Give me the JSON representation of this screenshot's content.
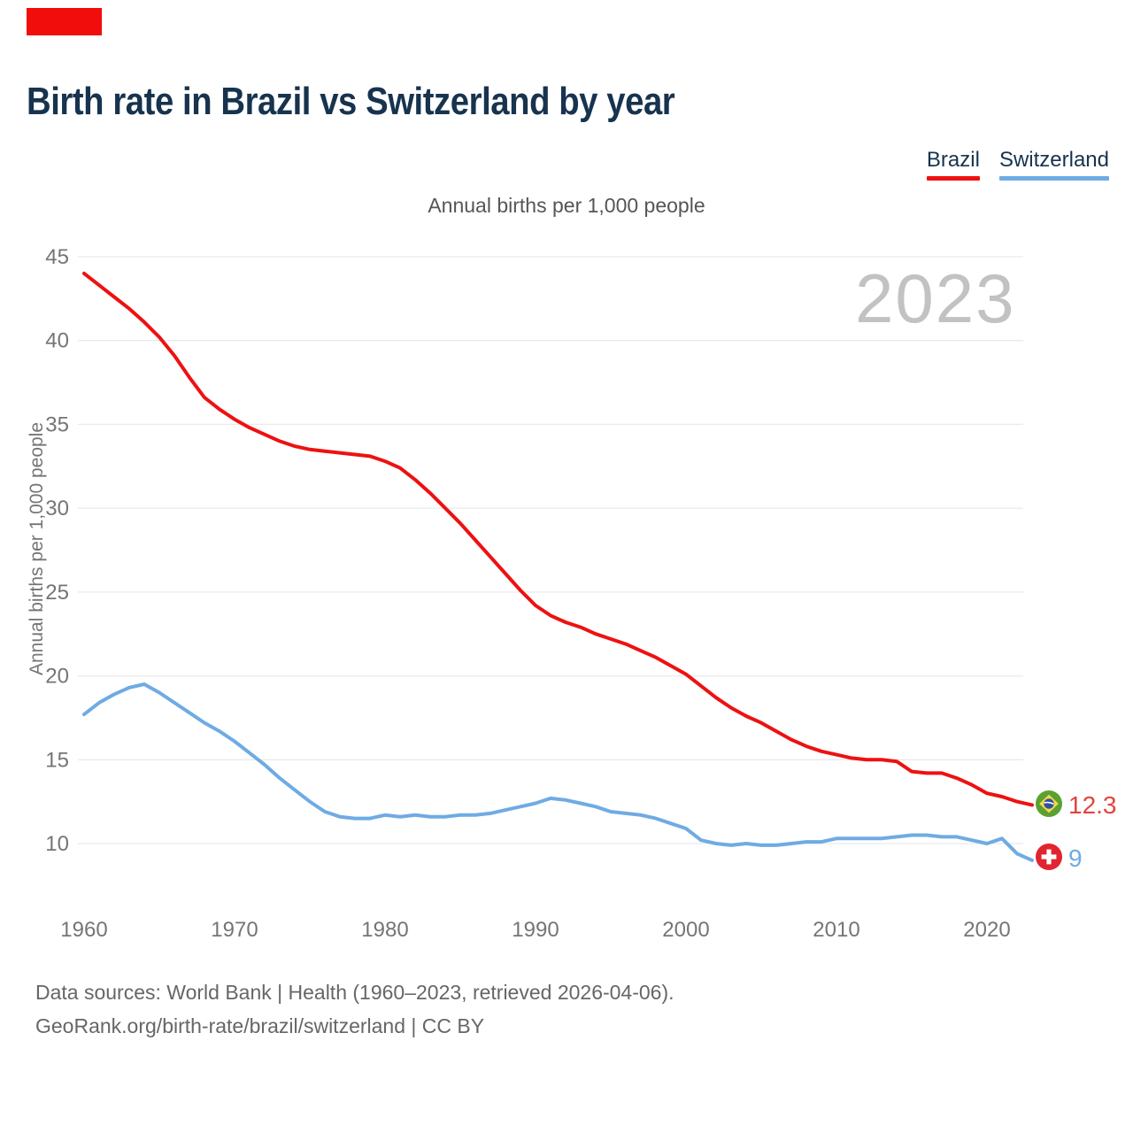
{
  "page": {
    "title": "Birth rate in Brazil vs Switzerland by year",
    "subtitle": "Annual births per 1,000 people",
    "watermark": "2023",
    "footer_line1": "Data sources: World Bank | Health (1960–2023, retrieved 2026-04-06).",
    "footer_line2": "GeoRank.org/birth-rate/brazil/switzerland | CC BY"
  },
  "legend": [
    {
      "label": "Brazil",
      "color": "#ee1111"
    },
    {
      "label": "Switzerland",
      "color": "#6fabe3"
    }
  ],
  "end_labels": [
    {
      "series": "Brazil",
      "value": "12.3",
      "color": "#e0443e",
      "flag": "brazil-flag-icon"
    },
    {
      "series": "Switzerland",
      "value": "9",
      "color": "#6fabe3",
      "flag": "switzerland-flag-icon"
    }
  ],
  "chart_data": {
    "type": "line",
    "title": "Birth rate in Brazil vs Switzerland by year",
    "subtitle": "Annual births per 1,000 people",
    "xlabel": "",
    "ylabel": "Annual births per 1,000 people",
    "xlim": [
      1960,
      2023
    ],
    "ylim": [
      8.5,
      45
    ],
    "grid": "horizontal",
    "legend_position": "top-right",
    "x_ticks": [
      1960,
      1970,
      1980,
      1990,
      2000,
      2010,
      2020
    ],
    "y_ticks": [
      45,
      40,
      35,
      30,
      25,
      20,
      15,
      10
    ],
    "x": [
      1960,
      1961,
      1962,
      1963,
      1964,
      1965,
      1966,
      1967,
      1968,
      1969,
      1970,
      1971,
      1972,
      1973,
      1974,
      1975,
      1976,
      1977,
      1978,
      1979,
      1980,
      1981,
      1982,
      1983,
      1984,
      1985,
      1986,
      1987,
      1988,
      1989,
      1990,
      1991,
      1992,
      1993,
      1994,
      1995,
      1996,
      1997,
      1998,
      1999,
      2000,
      2001,
      2002,
      2003,
      2004,
      2005,
      2006,
      2007,
      2008,
      2009,
      2010,
      2011,
      2012,
      2013,
      2014,
      2015,
      2016,
      2017,
      2018,
      2019,
      2020,
      2021,
      2022,
      2023
    ],
    "series": [
      {
        "name": "Brazil",
        "color": "#ee1111",
        "final_value": 12.3,
        "values": [
          44.0,
          43.3,
          42.6,
          41.9,
          41.1,
          40.2,
          39.1,
          37.8,
          36.6,
          35.9,
          35.3,
          34.8,
          34.4,
          34.0,
          33.7,
          33.5,
          33.4,
          33.3,
          33.2,
          33.1,
          32.8,
          32.4,
          31.7,
          30.9,
          30.0,
          29.1,
          28.1,
          27.1,
          26.1,
          25.1,
          24.2,
          23.6,
          23.2,
          22.9,
          22.5,
          22.2,
          21.9,
          21.5,
          21.1,
          20.6,
          20.1,
          19.4,
          18.7,
          18.1,
          17.6,
          17.2,
          16.7,
          16.2,
          15.8,
          15.5,
          15.3,
          15.1,
          15.0,
          15.0,
          14.9,
          14.3,
          14.2,
          14.2,
          13.9,
          13.5,
          13.0,
          12.8,
          12.5,
          12.3
        ]
      },
      {
        "name": "Switzerland",
        "color": "#6fabe3",
        "final_value": 9,
        "values": [
          17.7,
          18.4,
          18.9,
          19.3,
          19.5,
          19.0,
          18.4,
          17.8,
          17.2,
          16.7,
          16.1,
          15.4,
          14.7,
          13.9,
          13.2,
          12.5,
          11.9,
          11.6,
          11.5,
          11.5,
          11.7,
          11.6,
          11.7,
          11.6,
          11.6,
          11.7,
          11.7,
          11.8,
          12.0,
          12.2,
          12.4,
          12.7,
          12.6,
          12.4,
          12.2,
          11.9,
          11.8,
          11.7,
          11.5,
          11.2,
          10.9,
          10.2,
          10.0,
          9.9,
          10.0,
          9.9,
          9.9,
          10.0,
          10.1,
          10.1,
          10.3,
          10.3,
          10.3,
          10.3,
          10.4,
          10.5,
          10.5,
          10.4,
          10.4,
          10.2,
          10.0,
          10.3,
          9.4,
          9.0
        ]
      }
    ]
  }
}
